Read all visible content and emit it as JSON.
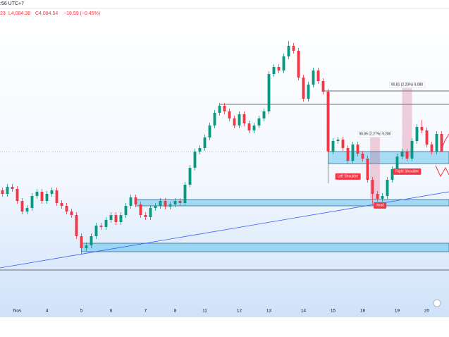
{
  "chart_data": {
    "type": "candlestick",
    "header": {
      "time": ":56 UTC+7",
      "open": "23",
      "low": "L4,084.38",
      "close": "C4,084.54",
      "change": "−18.59 (−0.45%)"
    },
    "open": [
      4030,
      4025,
      4035,
      4032,
      4015,
      4000,
      4005,
      4022,
      4028,
      4015,
      4025,
      4030,
      4012,
      4008,
      4000,
      3995,
      3965,
      3948,
      3952,
      3965,
      3980,
      3978,
      3988,
      3995,
      3985,
      3995,
      4008,
      4020,
      4010,
      3995,
      3992,
      4005,
      4008,
      4015,
      4007,
      4010,
      4015,
      4012,
      4038,
      4062,
      4085,
      4090,
      4105,
      4122,
      4140,
      4150,
      4142,
      4132,
      4122,
      4138,
      4125,
      4115,
      4122,
      4132,
      4142,
      4195,
      4205,
      4200,
      4220,
      4235,
      4228,
      4190,
      4160,
      4180,
      4200,
      4185,
      4170,
      4085,
      4100,
      4102,
      4090,
      4072,
      4095,
      4082,
      4075,
      4045,
      4025,
      4018,
      4022,
      4045,
      4060,
      4078,
      4085,
      4075,
      4100,
      4120,
      4115,
      4095,
      4085,
      4110
    ],
    "high": [
      4034,
      4039,
      4039,
      4036,
      4019,
      4009,
      4026,
      4032,
      4032,
      4029,
      4034,
      4034,
      4016,
      4012,
      4004,
      3999,
      3969,
      3956,
      3969,
      3984,
      3984,
      3992,
      3999,
      3999,
      3999,
      4012,
      4024,
      4024,
      4014,
      3999,
      4009,
      4012,
      4019,
      4019,
      4014,
      4019,
      4019,
      4042,
      4066,
      4089,
      4094,
      4109,
      4126,
      4144,
      4154,
      4154,
      4146,
      4136,
      4142,
      4142,
      4129,
      4126,
      4136,
      4146,
      4199,
      4209,
      4209,
      4224,
      4242,
      4239,
      4232,
      4194,
      4184,
      4204,
      4204,
      4189,
      4174,
      4104,
      4106,
      4106,
      4094,
      4099,
      4099,
      4086,
      4079,
      4049,
      4029,
      4026,
      4049,
      4064,
      4082,
      4089,
      4089,
      4104,
      4124,
      4130,
      4119,
      4099,
      4114,
      4114
    ],
    "low": [
      4021,
      4021,
      4028,
      4011,
      3996,
      3996,
      4001,
      4018,
      4011,
      4011,
      4021,
      4008,
      4004,
      3996,
      3991,
      3961,
      3940,
      3944,
      3948,
      3961,
      3974,
      3974,
      3984,
      3981,
      3981,
      3991,
      4004,
      4006,
      3991,
      3988,
      3988,
      4001,
      4004,
      4003,
      4003,
      4006,
      4008,
      4008,
      4034,
      4058,
      4081,
      4086,
      4101,
      4118,
      4136,
      4138,
      4128,
      4118,
      4118,
      4121,
      4111,
      4111,
      4118,
      4128,
      4138,
      4191,
      4196,
      4196,
      4216,
      4224,
      4186,
      4156,
      4156,
      4176,
      4181,
      4166,
      4040,
      4081,
      4096,
      4086,
      4068,
      4068,
      4078,
      4071,
      4041,
      4010,
      4014,
      4014,
      4018,
      4041,
      4056,
      4074,
      4071,
      4071,
      4096,
      4111,
      4091,
      4081,
      4081,
      4084.38
    ],
    "close": [
      4025,
      4035,
      4032,
      4015,
      4000,
      4005,
      4022,
      4028,
      4015,
      4025,
      4030,
      4012,
      4008,
      4000,
      3995,
      3965,
      3948,
      3952,
      3965,
      3980,
      3978,
      3988,
      3995,
      3985,
      3995,
      4008,
      4020,
      4010,
      3995,
      3992,
      4005,
      4008,
      4015,
      4007,
      4010,
      4015,
      4012,
      4038,
      4062,
      4085,
      4090,
      4105,
      4122,
      4140,
      4150,
      4142,
      4132,
      4122,
      4138,
      4125,
      4115,
      4122,
      4132,
      4142,
      4195,
      4205,
      4200,
      4220,
      4235,
      4228,
      4190,
      4160,
      4180,
      4200,
      4185,
      4170,
      4085,
      4100,
      4102,
      4090,
      4072,
      4095,
      4082,
      4075,
      4045,
      4025,
      4018,
      4022,
      4045,
      4060,
      4078,
      4085,
      4075,
      4100,
      4120,
      4115,
      4095,
      4085,
      4110,
      4084.54
    ],
    "up_color": "#089981",
    "down_color": "#f23645",
    "ylim": [
      3852,
      4300
    ],
    "xlim": [
      -0.5,
      90.5
    ],
    "xticks": [
      {
        "value": 3,
        "label": "Nov"
      },
      {
        "value": 9,
        "label": "4"
      },
      {
        "value": 16,
        "label": "5"
      },
      {
        "value": 22,
        "label": "6"
      },
      {
        "value": 29,
        "label": "7"
      },
      {
        "value": 35,
        "label": "8"
      },
      {
        "value": 41,
        "label": "11"
      },
      {
        "value": 48,
        "label": "12"
      },
      {
        "value": 54,
        "label": "13"
      },
      {
        "value": 61,
        "label": "14"
      },
      {
        "value": 67,
        "label": "15"
      },
      {
        "value": 73,
        "label": "18"
      },
      {
        "value": 80,
        "label": "19"
      },
      {
        "value": 86,
        "label": "20"
      }
    ],
    "zones": [
      {
        "start": 66,
        "from": 4068,
        "to": 4085
      },
      {
        "start": 27,
        "from": 4008,
        "to": 4017
      },
      {
        "start": 16,
        "from": 3943,
        "to": 3955
      }
    ],
    "levels": [
      {
        "start": 65,
        "value": 4171
      },
      {
        "start": 44,
        "value": 4152
      },
      {
        "start": -0.5,
        "value": 3917
      }
    ],
    "trendline": {
      "start": [
        -0.5,
        3920
      ],
      "end": [
        90.5,
        4028
      ]
    },
    "measures": [
      {
        "label": "90,85 (2,27%) 9,280",
        "start": 74.5,
        "end": 76.5,
        "from": 4017,
        "to": 4105
      },
      {
        "label": "90,81 (2,23%) 9,080",
        "start": 81,
        "end": 83,
        "from": 4078,
        "to": 4175
      }
    ],
    "annotations": [
      {
        "text": "Left Shoulder",
        "index": 70,
        "price": 4050
      },
      {
        "text": "Right Shoulder",
        "index": 82,
        "price": 4057
      },
      {
        "text": "Head",
        "index": 76.5,
        "price": 4009
      }
    ]
  }
}
